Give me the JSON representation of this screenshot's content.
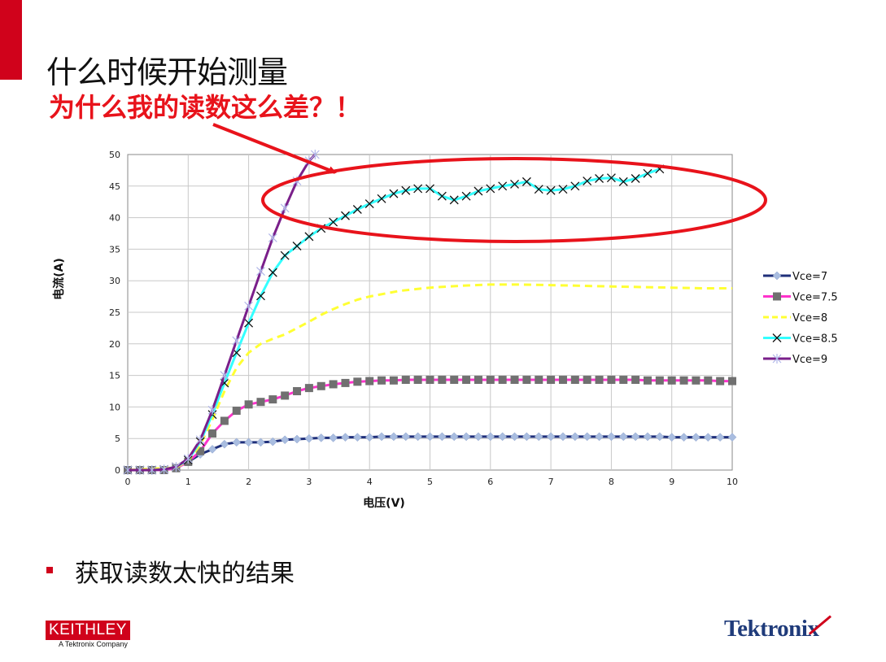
{
  "slide": {
    "title": "什么时候开始测量",
    "subtitle": "为什么我的读数这么差？！",
    "bullet": "获取读数太快的结果"
  },
  "logos": {
    "keithley": "KEITHLEY",
    "keithley_sub": "A Tektronix Company",
    "tektronix": "Tektronix"
  },
  "colors": {
    "accent_red": "#d0021b",
    "subtitle_red": "#e8131b",
    "annotation_red": "#e8131b"
  },
  "chart_data": {
    "type": "line",
    "title": "",
    "xlabel": "电压(V)",
    "ylabel": "电流(A)",
    "xlim": [
      0,
      10
    ],
    "ylim": [
      0,
      50
    ],
    "xticks": [
      "0",
      "1",
      "2",
      "3",
      "4",
      "5",
      "6",
      "7",
      "8",
      "9",
      "10"
    ],
    "yticks": [
      "0",
      "5",
      "10",
      "15",
      "20",
      "25",
      "30",
      "35",
      "40",
      "45",
      "50"
    ],
    "grid": true,
    "legend": "right",
    "annotation": "red ellipse around the noisy Vce=8.5 curve with red arrow from the subtitle",
    "series": [
      {
        "name": "Vce=7",
        "color": "#1f2f7a",
        "marker": "diamond",
        "marker_color": "#a9bde0",
        "x": [
          0,
          0.2,
          0.4,
          0.6,
          0.8,
          1.0,
          1.2,
          1.4,
          1.6,
          1.8,
          2.0,
          2.2,
          2.4,
          2.6,
          2.8,
          3.0,
          3.2,
          3.4,
          3.6,
          3.8,
          4.0,
          4.2,
          4.4,
          4.6,
          4.8,
          5.0,
          5.2,
          5.4,
          5.6,
          5.8,
          6.0,
          6.2,
          6.4,
          6.6,
          6.8,
          7.0,
          7.2,
          7.4,
          7.6,
          7.8,
          8.0,
          8.2,
          8.4,
          8.6,
          8.8,
          9.0,
          9.2,
          9.4,
          9.6,
          9.8,
          10.0
        ],
        "y": [
          0,
          0,
          0,
          0.1,
          0.4,
          1.3,
          2.5,
          3.3,
          4.1,
          4.4,
          4.4,
          4.4,
          4.5,
          4.8,
          4.9,
          5.0,
          5.1,
          5.1,
          5.2,
          5.2,
          5.2,
          5.3,
          5.3,
          5.3,
          5.3,
          5.3,
          5.3,
          5.3,
          5.3,
          5.3,
          5.3,
          5.3,
          5.3,
          5.3,
          5.3,
          5.3,
          5.3,
          5.3,
          5.3,
          5.3,
          5.3,
          5.3,
          5.3,
          5.3,
          5.3,
          5.2,
          5.2,
          5.2,
          5.2,
          5.2,
          5.2
        ]
      },
      {
        "name": "Vce=7.5",
        "color": "#ff33cc",
        "marker": "square",
        "marker_color": "#707070",
        "x": [
          0,
          0.2,
          0.4,
          0.6,
          0.8,
          1.0,
          1.2,
          1.4,
          1.6,
          1.8,
          2.0,
          2.2,
          2.4,
          2.6,
          2.8,
          3.0,
          3.2,
          3.4,
          3.6,
          3.8,
          4.0,
          4.2,
          4.4,
          4.6,
          4.8,
          5.0,
          5.2,
          5.4,
          5.6,
          5.8,
          6.0,
          6.2,
          6.4,
          6.6,
          6.8,
          7.0,
          7.2,
          7.4,
          7.6,
          7.8,
          8.0,
          8.2,
          8.4,
          8.6,
          8.8,
          9.0,
          9.2,
          9.4,
          9.6,
          9.8,
          10.0
        ],
        "y": [
          0,
          0,
          0,
          0,
          0.3,
          1.3,
          3.0,
          5.8,
          7.8,
          9.4,
          10.4,
          10.8,
          11.2,
          11.8,
          12.5,
          13.0,
          13.3,
          13.6,
          13.8,
          14.0,
          14.1,
          14.2,
          14.2,
          14.3,
          14.3,
          14.3,
          14.3,
          14.3,
          14.3,
          14.3,
          14.3,
          14.3,
          14.3,
          14.3,
          14.3,
          14.3,
          14.3,
          14.3,
          14.3,
          14.3,
          14.3,
          14.3,
          14.3,
          14.2,
          14.2,
          14.2,
          14.2,
          14.2,
          14.2,
          14.1,
          14.1
        ]
      },
      {
        "name": "Vce=8",
        "color": "#ffff33",
        "marker": "none",
        "x": [
          0,
          0.8,
          1.0,
          1.2,
          1.4,
          1.6,
          1.8,
          2.0,
          2.2,
          2.4,
          2.6,
          2.8,
          3.0,
          3.2,
          3.4,
          3.6,
          3.8,
          4.0,
          4.5,
          5.0,
          5.5,
          6.0,
          6.5,
          7.0,
          7.5,
          8.0,
          8.5,
          9.0,
          9.5,
          10.0
        ],
        "y": [
          0,
          0.4,
          1.5,
          4.0,
          8.0,
          12.5,
          16.2,
          18.6,
          20.0,
          20.8,
          21.5,
          22.5,
          23.5,
          24.6,
          25.5,
          26.3,
          27.0,
          27.5,
          28.4,
          28.9,
          29.2,
          29.4,
          29.4,
          29.3,
          29.2,
          29.1,
          29.0,
          28.9,
          28.8,
          28.8
        ]
      },
      {
        "name": "Vce=8.5",
        "color": "#33ffff",
        "marker": "x",
        "marker_color": "#111111",
        "x": [
          0,
          0.2,
          0.4,
          0.6,
          0.8,
          1.0,
          1.2,
          1.4,
          1.6,
          1.8,
          2.0,
          2.2,
          2.4,
          2.6,
          2.8,
          3.0,
          3.2,
          3.4,
          3.6,
          3.8,
          4.0,
          4.2,
          4.4,
          4.6,
          4.8,
          5.0,
          5.2,
          5.4,
          5.6,
          5.8,
          6.0,
          6.2,
          6.4,
          6.6,
          6.8,
          7.0,
          7.2,
          7.4,
          7.6,
          7.8,
          8.0,
          8.2,
          8.4,
          8.6,
          8.8
        ],
        "y": [
          0,
          0,
          0,
          0.1,
          0.5,
          1.6,
          4.5,
          8.8,
          13.8,
          18.6,
          23.3,
          27.6,
          31.3,
          34.0,
          35.5,
          37.0,
          38.3,
          39.3,
          40.3,
          41.3,
          42.2,
          43.0,
          43.8,
          44.3,
          44.6,
          44.6,
          43.4,
          42.8,
          43.4,
          44.2,
          44.6,
          45.0,
          45.3,
          45.7,
          44.5,
          44.3,
          44.5,
          45.0,
          45.8,
          46.2,
          46.3,
          45.7,
          46.2,
          47.0,
          47.7
        ]
      },
      {
        "name": "Vce=9",
        "color": "#7a1f8a",
        "marker": "star",
        "marker_color": "#b0b6e8",
        "x": [
          0,
          0.2,
          0.4,
          0.6,
          0.8,
          1.0,
          1.2,
          1.4,
          1.6,
          1.8,
          2.0,
          2.2,
          2.4,
          2.6,
          2.8,
          3.0,
          3.1
        ],
        "y": [
          0,
          0,
          0,
          0.1,
          0.5,
          1.8,
          4.8,
          9.5,
          15.0,
          20.5,
          26.0,
          31.5,
          36.8,
          41.5,
          45.8,
          49.0,
          50.0
        ]
      }
    ]
  }
}
